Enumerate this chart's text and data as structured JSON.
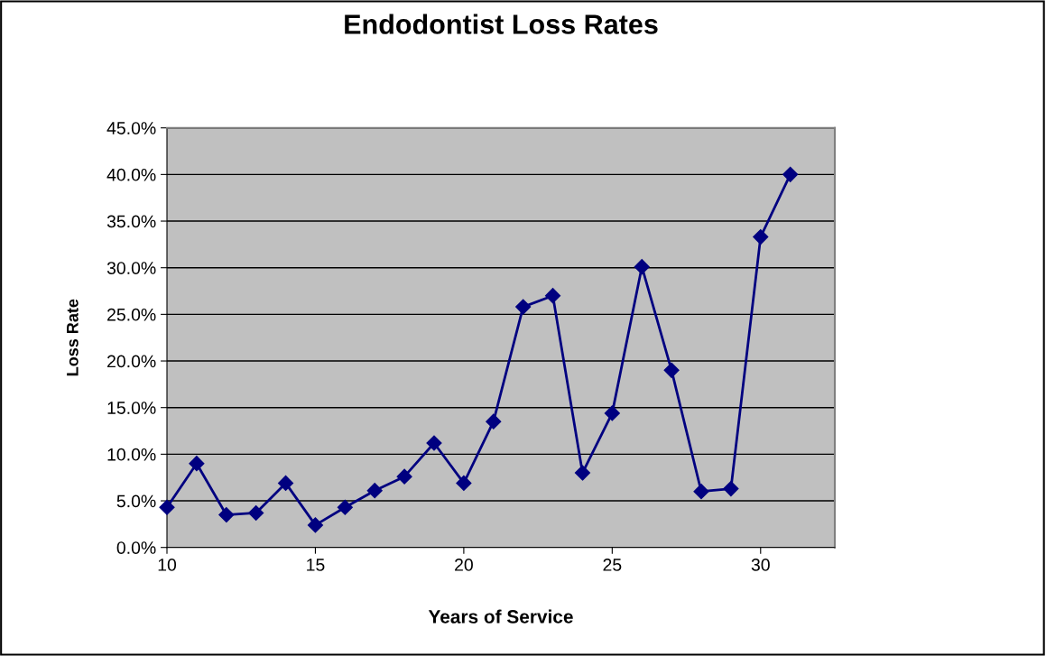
{
  "chart_data": {
    "type": "line",
    "title": "Endodontist Loss Rates",
    "xlabel": "Years of Service",
    "ylabel": "Loss Rate",
    "x": [
      10,
      11,
      12,
      13,
      14,
      15,
      16,
      17,
      18,
      19,
      20,
      21,
      22,
      23,
      24,
      25,
      26,
      27,
      28,
      29,
      30,
      31
    ],
    "series": [
      {
        "color": "#000080",
        "values": [
          4.3,
          9.0,
          3.5,
          3.7,
          6.9,
          2.4,
          4.3,
          6.1,
          7.6,
          11.2,
          6.9,
          13.5,
          25.8,
          27.0,
          8.0,
          14.4,
          30.1,
          19.0,
          6.0,
          6.3,
          33.3,
          40.0
        ]
      }
    ],
    "xlim": [
      10,
      32.5
    ],
    "xticks": [
      10,
      15,
      20,
      25,
      30
    ],
    "ylim": [
      0,
      45
    ],
    "yticks": [
      {
        "value": 0,
        "label": "0.0%"
      },
      {
        "value": 5,
        "label": "5.0%"
      },
      {
        "value": 10,
        "label": "10.0%"
      },
      {
        "value": 15,
        "label": "15.0%"
      },
      {
        "value": 20,
        "label": "20.0%"
      },
      {
        "value": 25,
        "label": "25.0%"
      },
      {
        "value": 30,
        "label": "30.0%"
      },
      {
        "value": 35,
        "label": "35.0%"
      },
      {
        "value": 40,
        "label": "40.0%"
      },
      {
        "value": 45,
        "label": "45.0%"
      }
    ],
    "grid": "y",
    "marker": "diamond",
    "line_style": "solid"
  }
}
